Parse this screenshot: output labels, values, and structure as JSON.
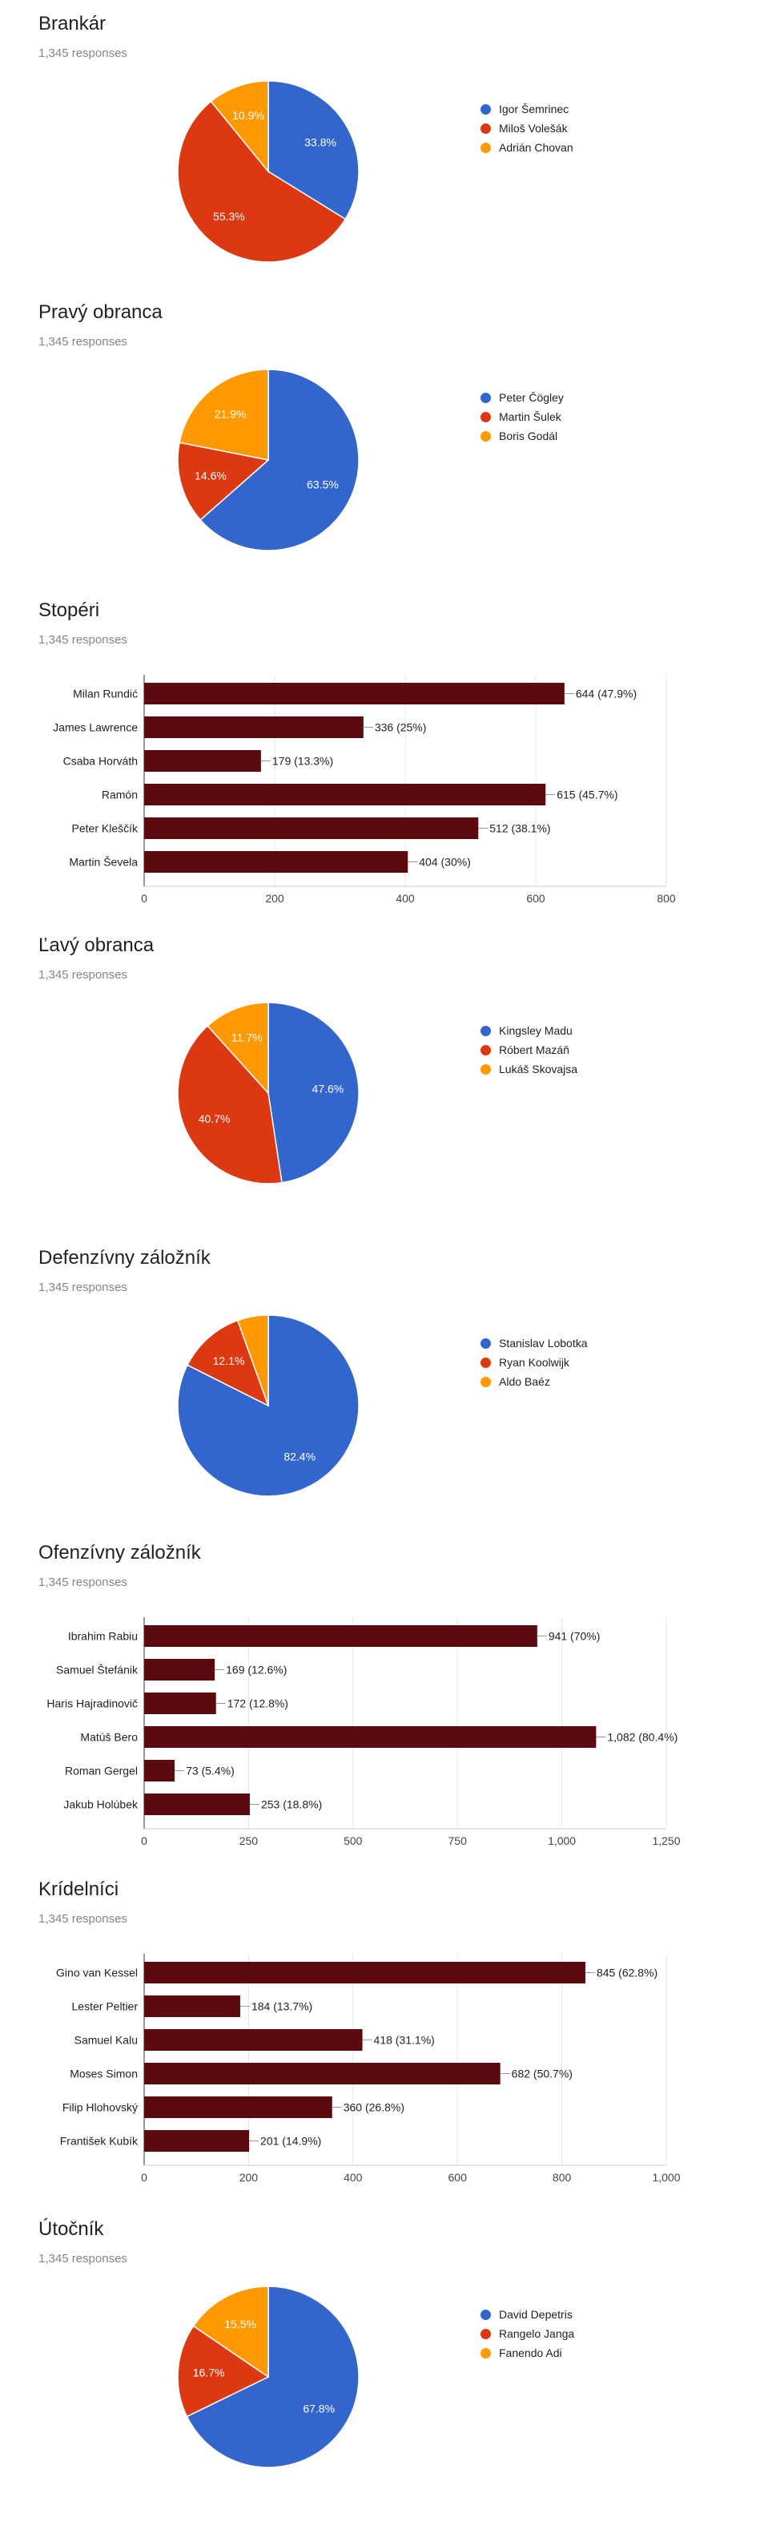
{
  "responses_label": "1,345 responses",
  "colors": {
    "blue": "#3366cc",
    "red": "#dc3912",
    "orange": "#ff9900",
    "bar": "#5c0a0f"
  },
  "chart_data": [
    {
      "id": "s0",
      "type": "pie",
      "title": "Brankár",
      "labels": [
        "Igor Šemrinec",
        "Miloš Volešák",
        "Adrián Chovan"
      ],
      "values": [
        33.8,
        55.3,
        10.9
      ],
      "value_labels": [
        "33.8%",
        "55.3%",
        "10.9%"
      ],
      "colors": [
        "#3366cc",
        "#dc3912",
        "#ff9900"
      ]
    },
    {
      "id": "s1",
      "type": "pie",
      "title": "Pravý obranca",
      "labels": [
        "Peter Čögley",
        "Martin Šulek",
        "Boris Godál"
      ],
      "values": [
        63.5,
        14.6,
        21.9
      ],
      "value_labels": [
        "63.5%",
        "14.6%",
        "21.9%"
      ],
      "colors": [
        "#3366cc",
        "#dc3912",
        "#ff9900"
      ]
    },
    {
      "id": "s2",
      "type": "bar",
      "title": "Stopéri",
      "categories": [
        "Milan Rundić",
        "James Lawrence",
        "Csaba Horváth",
        "Ramón",
        "Peter Kleščík",
        "Martin Ševela"
      ],
      "values": [
        644,
        336,
        179,
        615,
        512,
        404
      ],
      "value_labels": [
        "644 (47.9%)",
        "336 (25%)",
        "179 (13.3%)",
        "615 (45.7%)",
        "512 (38.1%)",
        "404 (30%)"
      ],
      "xlim": [
        0,
        800
      ],
      "ticks": [
        0,
        200,
        400,
        600,
        800
      ],
      "tick_labels": [
        "0",
        "200",
        "400",
        "600",
        "800"
      ]
    },
    {
      "id": "s3",
      "type": "pie",
      "title": "Ľavý obranca",
      "labels": [
        "Kingsley Madu",
        "Róbert Mazáň",
        "Lukáš Skovajsa"
      ],
      "values": [
        47.6,
        40.7,
        11.7
      ],
      "value_labels": [
        "47.6%",
        "40.7%",
        "11.7%"
      ],
      "colors": [
        "#3366cc",
        "#dc3912",
        "#ff9900"
      ]
    },
    {
      "id": "s4",
      "type": "pie",
      "title": "Defenzívny záložník",
      "labels": [
        "Stanislav Lobotka",
        "Ryan Koolwijk",
        "Aldo Baéz"
      ],
      "values": [
        82.4,
        12.1,
        5.5
      ],
      "value_labels": [
        "82.4%",
        "12.1%",
        ""
      ],
      "colors": [
        "#3366cc",
        "#dc3912",
        "#ff9900"
      ]
    },
    {
      "id": "s5",
      "type": "bar",
      "title": "Ofenzívny záložník",
      "categories": [
        "Ibrahim Rabiu",
        "Samuel Štefánik",
        "Haris Hajradinovič",
        "Matúš Bero",
        "Roman Gergel",
        "Jakub Holúbek"
      ],
      "values": [
        941,
        169,
        172,
        1082,
        73,
        253
      ],
      "value_labels": [
        "941 (70%)",
        "169 (12.6%)",
        "172 (12.8%)",
        "1,082 (80.4%)",
        "73 (5.4%)",
        "253 (18.8%)"
      ],
      "xlim": [
        0,
        1250
      ],
      "ticks": [
        0,
        250,
        500,
        750,
        1000,
        1250
      ],
      "tick_labels": [
        "0",
        "250",
        "500",
        "750",
        "1,000",
        "1,250"
      ]
    },
    {
      "id": "s6",
      "type": "bar",
      "title": "Krídelníci",
      "categories": [
        "Gino van Kessel",
        "Lester Peltier",
        "Samuel Kalu",
        "Moses Simon",
        "Filip Hlohovský",
        "František Kubík"
      ],
      "values": [
        845,
        184,
        418,
        682,
        360,
        201
      ],
      "value_labels": [
        "845 (62.8%)",
        "184 (13.7%)",
        "418 (31.1%)",
        "682 (50.7%)",
        "360 (26.8%)",
        "201 (14.9%)"
      ],
      "xlim": [
        0,
        1000
      ],
      "ticks": [
        0,
        200,
        400,
        600,
        800,
        1000
      ],
      "tick_labels": [
        "0",
        "200",
        "400",
        "600",
        "800",
        "1,000"
      ]
    },
    {
      "id": "s7",
      "type": "pie",
      "title": "Útočník",
      "labels": [
        "David Depetris",
        "Rangelo Janga",
        "Fanendo Adi"
      ],
      "values": [
        67.8,
        16.7,
        15.5
      ],
      "value_labels": [
        "67.8%",
        "16.7%",
        "15.5%"
      ],
      "colors": [
        "#3366cc",
        "#dc3912",
        "#ff9900"
      ]
    }
  ]
}
